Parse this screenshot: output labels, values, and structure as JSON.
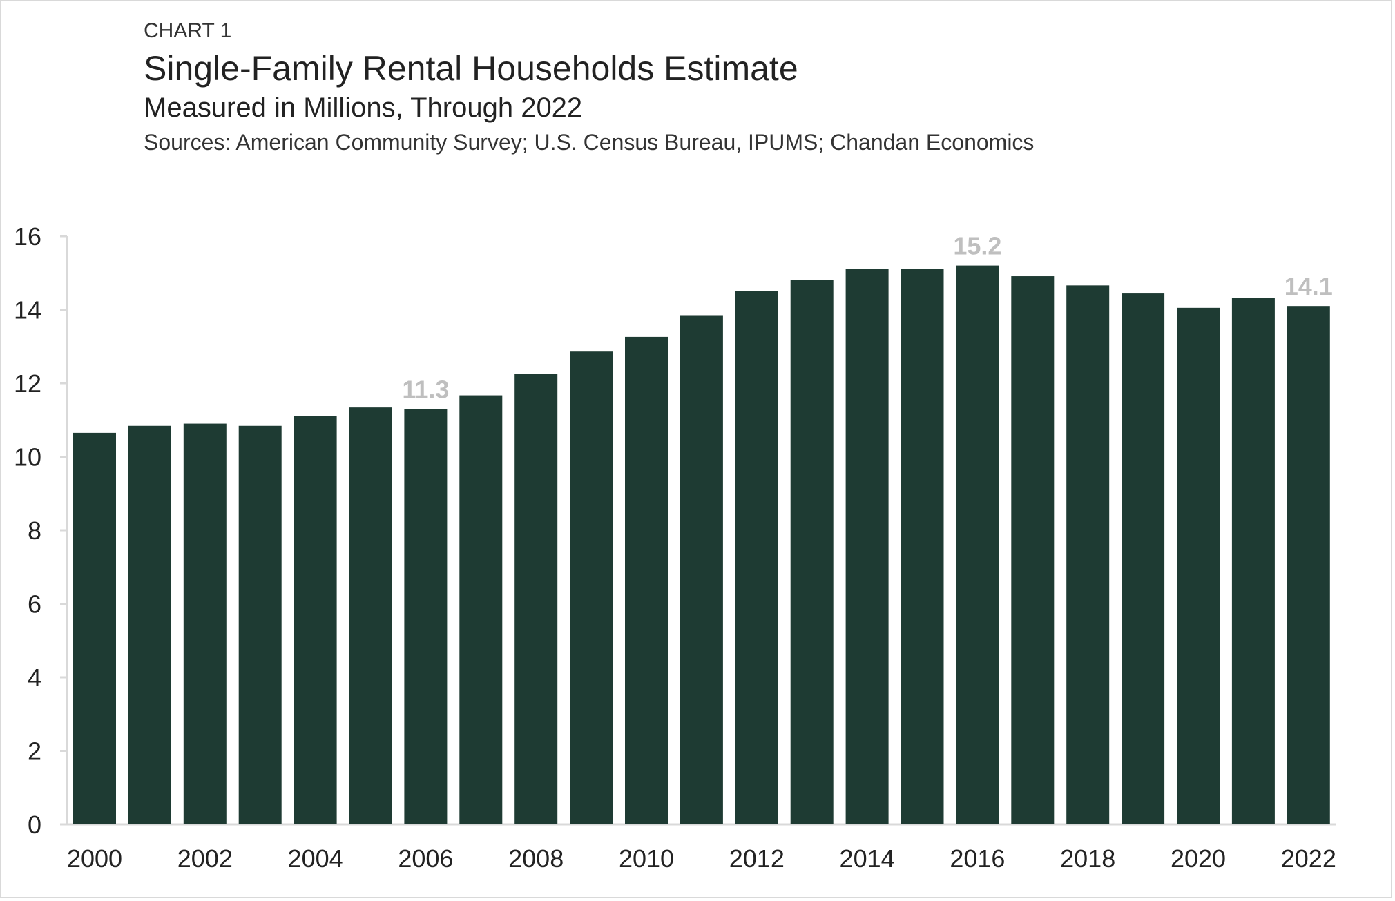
{
  "header": {
    "label": "CHART 1",
    "title": "Single-Family Rental Households Estimate",
    "subtitle": "Measured in Millions, Through 2022",
    "sources": "Sources: American Community Survey; U.S. Census Bureau, IPUMS; Chandan Economics"
  },
  "chart_data": {
    "type": "bar",
    "categories": [
      "2000",
      "2001",
      "2002",
      "2003",
      "2004",
      "2005",
      "2006",
      "2007",
      "2008",
      "2009",
      "2010",
      "2011",
      "2012",
      "2013",
      "2014",
      "2015",
      "2016",
      "2017",
      "2018",
      "2019",
      "2020",
      "2021",
      "2022"
    ],
    "values": [
      10.65,
      10.84,
      10.9,
      10.84,
      11.1,
      11.34,
      11.3,
      11.67,
      12.26,
      12.86,
      13.26,
      13.85,
      14.51,
      14.8,
      15.1,
      15.1,
      15.2,
      14.91,
      14.66,
      14.44,
      14.05,
      14.31,
      14.1
    ],
    "x_tick_labels": [
      "2000",
      "2002",
      "2004",
      "2006",
      "2008",
      "2010",
      "2012",
      "2014",
      "2016",
      "2018",
      "2020",
      "2022"
    ],
    "y_tick_labels": [
      "0",
      "2",
      "4",
      "6",
      "8",
      "10",
      "12",
      "14",
      "16"
    ],
    "ylim": [
      0,
      16
    ],
    "grid": false,
    "data_labels": [
      {
        "category": "2006",
        "text": "11.3"
      },
      {
        "category": "2016",
        "text": "15.2"
      },
      {
        "category": "2022",
        "text": "14.1"
      }
    ],
    "colors": {
      "bar": "#1e3b33",
      "data_label": "#bfbfbf",
      "axis": "#d9d9d9"
    }
  }
}
